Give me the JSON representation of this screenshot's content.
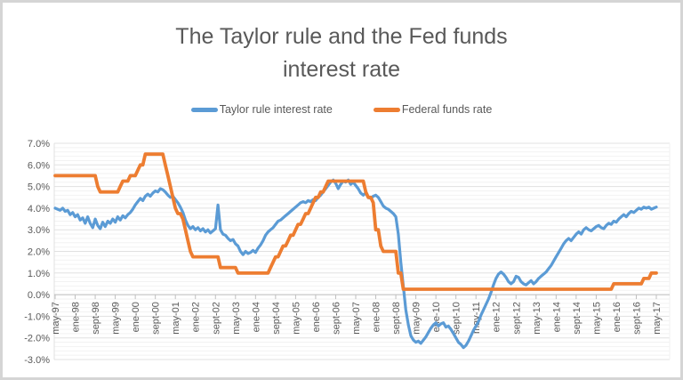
{
  "title": "The Taylor rule and the Fed funds interest rate",
  "colors": {
    "taylor_blue": "#5B9BD5",
    "fed_orange": "#ED7D31",
    "text_gray": "#595959",
    "grid_minor": "#f2f2f2",
    "grid_major": "#e1e1e1",
    "axis_line": "#bfbfbf",
    "frame_border": "#d5d5d5"
  },
  "legend": [
    {
      "label": "Taylor rule interest rate",
      "color": "#5B9BD5"
    },
    {
      "label": "Federal funds rate",
      "color": "#ED7D31"
    }
  ],
  "chart_data": {
    "type": "line",
    "title": "The Taylor rule and the Fed funds interest rate",
    "xlabel": "",
    "ylabel": "",
    "x_unit": "monthly, may-1997 to may-2017",
    "ylim": [
      -3,
      7
    ],
    "y_major_step": 1,
    "y_minor_step": 0.2,
    "grid": "horizontal-major-and-minor",
    "legend_position": "top",
    "y_tick_labels": [
      "7.0%",
      "6.0%",
      "5.0%",
      "4.0%",
      "3.0%",
      "2.0%",
      "1.0%",
      "0.0%",
      "-1.0%",
      "-2.0%",
      "-3.0%"
    ],
    "x_tick_labels": [
      "may-97",
      "ene-98",
      "sept-98",
      "may-99",
      "ene-00",
      "sept-00",
      "may-01",
      "ene-02",
      "sept-02",
      "may-03",
      "ene-04",
      "sept-04",
      "may-05",
      "ene-06",
      "sept-06",
      "may-07",
      "ene-08",
      "sept-08",
      "may-09",
      "ene-10",
      "sept-10",
      "may-11",
      "ene-12",
      "sept-12",
      "may-13",
      "ene-14",
      "sept-14",
      "may-15",
      "ene-16",
      "sept-16",
      "may-17"
    ],
    "x_tick_every_n_months": 8,
    "series": [
      {
        "name": "Taylor rule interest rate",
        "color": "#5B9BD5",
        "values": [
          4.0,
          3.95,
          3.9,
          4.0,
          3.85,
          3.9,
          3.7,
          3.8,
          3.6,
          3.7,
          3.45,
          3.55,
          3.3,
          3.6,
          3.3,
          3.1,
          3.5,
          3.2,
          3.05,
          3.35,
          3.15,
          3.4,
          3.3,
          3.5,
          3.35,
          3.6,
          3.45,
          3.65,
          3.55,
          3.7,
          3.8,
          3.95,
          4.15,
          4.3,
          4.45,
          4.35,
          4.55,
          4.65,
          4.55,
          4.7,
          4.8,
          4.75,
          4.9,
          4.85,
          4.75,
          4.6,
          4.5,
          4.55,
          4.4,
          4.25,
          4.05,
          3.8,
          3.45,
          3.2,
          3.05,
          3.15,
          3.0,
          3.1,
          2.95,
          3.05,
          2.9,
          3.0,
          2.85,
          2.95,
          3.05,
          4.15,
          3.0,
          2.8,
          2.75,
          2.6,
          2.5,
          2.55,
          2.35,
          2.25,
          2.0,
          1.85,
          2.0,
          1.9,
          1.95,
          2.05,
          1.95,
          2.15,
          2.3,
          2.5,
          2.75,
          2.9,
          3.0,
          3.1,
          3.25,
          3.4,
          3.45,
          3.55,
          3.65,
          3.75,
          3.85,
          3.95,
          4.05,
          4.15,
          4.25,
          4.3,
          4.25,
          4.35,
          4.3,
          4.4,
          4.35,
          4.5,
          4.6,
          4.75,
          4.9,
          5.05,
          5.2,
          5.3,
          5.15,
          4.9,
          5.1,
          5.25,
          5.2,
          5.3,
          5.1,
          5.2,
          5.05,
          4.9,
          4.7,
          4.6,
          4.7,
          4.5,
          4.45,
          4.55,
          4.6,
          4.5,
          4.3,
          4.1,
          4.0,
          3.95,
          3.85,
          3.75,
          3.6,
          2.8,
          1.5,
          0.4,
          -0.7,
          -1.4,
          -1.9,
          -2.1,
          -2.2,
          -2.15,
          -2.25,
          -2.1,
          -1.95,
          -1.75,
          -1.55,
          -1.4,
          -1.3,
          -1.45,
          -1.35,
          -1.3,
          -1.5,
          -1.45,
          -1.6,
          -1.8,
          -2.0,
          -2.2,
          -2.3,
          -2.45,
          -2.35,
          -2.15,
          -1.9,
          -1.65,
          -1.45,
          -1.25,
          -0.95,
          -0.7,
          -0.45,
          -0.2,
          0.1,
          0.45,
          0.75,
          0.95,
          1.05,
          0.95,
          0.8,
          0.6,
          0.5,
          0.6,
          0.85,
          0.8,
          0.6,
          0.5,
          0.45,
          0.55,
          0.65,
          0.5,
          0.6,
          0.75,
          0.85,
          0.95,
          1.05,
          1.2,
          1.35,
          1.55,
          1.75,
          1.95,
          2.15,
          2.35,
          2.5,
          2.6,
          2.5,
          2.65,
          2.8,
          2.9,
          2.8,
          3.0,
          3.1,
          3.0,
          2.95,
          3.05,
          3.15,
          3.2,
          3.1,
          3.05,
          3.2,
          3.3,
          3.25,
          3.4,
          3.35,
          3.5,
          3.6,
          3.7,
          3.6,
          3.75,
          3.85,
          3.8,
          3.9,
          4.0,
          3.95,
          4.05,
          4.0,
          4.05,
          3.95,
          4.0,
          4.05
        ]
      },
      {
        "name": "Federal funds rate",
        "color": "#ED7D31",
        "values": [
          5.5,
          5.5,
          5.5,
          5.5,
          5.5,
          5.5,
          5.5,
          5.5,
          5.5,
          5.5,
          5.5,
          5.5,
          5.5,
          5.5,
          5.5,
          5.5,
          5.5,
          5.0,
          4.75,
          4.75,
          4.75,
          4.75,
          4.75,
          4.75,
          4.75,
          4.75,
          5.0,
          5.25,
          5.25,
          5.25,
          5.5,
          5.5,
          5.5,
          5.75,
          6.0,
          6.0,
          6.5,
          6.5,
          6.5,
          6.5,
          6.5,
          6.5,
          6.5,
          6.5,
          6.0,
          5.5,
          5.0,
          4.5,
          4.0,
          3.75,
          3.75,
          3.5,
          3.0,
          2.5,
          2.0,
          1.75,
          1.75,
          1.75,
          1.75,
          1.75,
          1.75,
          1.75,
          1.75,
          1.75,
          1.75,
          1.75,
          1.25,
          1.25,
          1.25,
          1.25,
          1.25,
          1.25,
          1.25,
          1.0,
          1.0,
          1.0,
          1.0,
          1.0,
          1.0,
          1.0,
          1.0,
          1.0,
          1.0,
          1.0,
          1.0,
          1.0,
          1.25,
          1.5,
          1.75,
          1.75,
          2.0,
          2.25,
          2.25,
          2.5,
          2.75,
          2.75,
          3.0,
          3.25,
          3.25,
          3.5,
          3.75,
          3.75,
          4.0,
          4.25,
          4.5,
          4.5,
          4.75,
          4.75,
          5.0,
          5.25,
          5.25,
          5.25,
          5.25,
          5.25,
          5.25,
          5.25,
          5.25,
          5.25,
          5.25,
          5.25,
          5.25,
          5.25,
          5.25,
          5.25,
          4.75,
          4.5,
          4.5,
          4.25,
          3.0,
          3.0,
          2.25,
          2.0,
          2.0,
          2.0,
          2.0,
          2.0,
          2.0,
          1.0,
          1.0,
          0.25,
          0.25,
          0.25,
          0.25,
          0.25,
          0.25,
          0.25,
          0.25,
          0.25,
          0.25,
          0.25,
          0.25,
          0.25,
          0.25,
          0.25,
          0.25,
          0.25,
          0.25,
          0.25,
          0.25,
          0.25,
          0.25,
          0.25,
          0.25,
          0.25,
          0.25,
          0.25,
          0.25,
          0.25,
          0.25,
          0.25,
          0.25,
          0.25,
          0.25,
          0.25,
          0.25,
          0.25,
          0.25,
          0.25,
          0.25,
          0.25,
          0.25,
          0.25,
          0.25,
          0.25,
          0.25,
          0.25,
          0.25,
          0.25,
          0.25,
          0.25,
          0.25,
          0.25,
          0.25,
          0.25,
          0.25,
          0.25,
          0.25,
          0.25,
          0.25,
          0.25,
          0.25,
          0.25,
          0.25,
          0.25,
          0.25,
          0.25,
          0.25,
          0.25,
          0.25,
          0.25,
          0.25,
          0.25,
          0.25,
          0.25,
          0.25,
          0.25,
          0.25,
          0.25,
          0.25,
          0.25,
          0.25,
          0.25,
          0.25,
          0.5,
          0.5,
          0.5,
          0.5,
          0.5,
          0.5,
          0.5,
          0.5,
          0.5,
          0.5,
          0.5,
          0.5,
          0.75,
          0.75,
          0.75,
          1.0,
          1.0,
          1.0
        ]
      }
    ]
  }
}
